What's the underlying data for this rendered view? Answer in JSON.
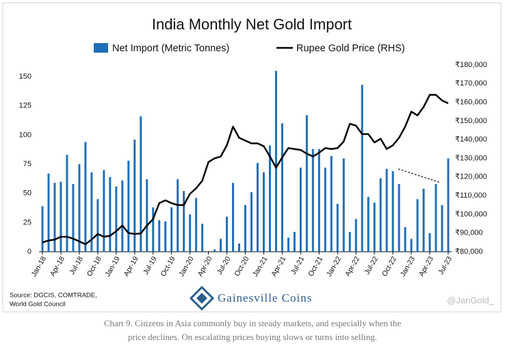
{
  "chart_data": {
    "type": "bar_line",
    "title": "India Monthly Net Gold Import",
    "categories": [
      "Jan-18",
      null,
      null,
      "Apr-18",
      null,
      null,
      "Jul-18",
      null,
      null,
      "Oct-18",
      null,
      null,
      "Jan-19",
      null,
      null,
      "Apr-19",
      null,
      null,
      "Jul-19",
      null,
      null,
      "Oct-19",
      null,
      null,
      "Jan-20",
      null,
      null,
      "Apr-20",
      null,
      null,
      "Jul-20",
      null,
      null,
      "Oct-20",
      null,
      null,
      "Jan-21",
      null,
      null,
      "Apr-21",
      null,
      null,
      "Jul-21",
      null,
      null,
      "Oct-21",
      null,
      null,
      "Jan-22",
      null,
      null,
      "Apr-22",
      null,
      null,
      "Jul-22",
      null,
      null,
      "Oct-22",
      null,
      null,
      "Jan-23",
      null,
      null,
      "Apr-23",
      null,
      null,
      "Jul-23"
    ],
    "series": [
      {
        "name": "Net Import (Metric Tonnes)",
        "color": "#1f6fb8",
        "type": "bar",
        "values": [
          39,
          67,
          59,
          60,
          83,
          58,
          75,
          94,
          68,
          45,
          70,
          64,
          56,
          61,
          78,
          96,
          116,
          62,
          38,
          27,
          26,
          38,
          62,
          52,
          32,
          46,
          24,
          0,
          2,
          11,
          30,
          59,
          7,
          40,
          51,
          76,
          68,
          91,
          155,
          110,
          12,
          17,
          72,
          117,
          88,
          88,
          72,
          82,
          41,
          80,
          17,
          28,
          143,
          47,
          42,
          63,
          71,
          69,
          58,
          21,
          11,
          45,
          54,
          16,
          58,
          40,
          80
        ]
      },
      {
        "name": "Rupee Gold Price (RHS)",
        "color": "#000000",
        "type": "line",
        "axis": "y2",
        "values": [
          85000,
          86000,
          86500,
          88000,
          88000,
          87000,
          85500,
          84000,
          86500,
          89500,
          88000,
          88500,
          91000,
          94000,
          90000,
          89500,
          89800,
          94000,
          97500,
          106000,
          107500,
          106000,
          105000,
          105000,
          111000,
          114000,
          118000,
          128000,
          130000,
          131000,
          137000,
          147000,
          141000,
          139500,
          138000,
          138000,
          136500,
          131000,
          125000,
          130500,
          135500,
          135000,
          134500,
          132500,
          131000,
          133000,
          135500,
          135000,
          135500,
          139000,
          148500,
          147500,
          143000,
          143000,
          138500,
          140500,
          135000,
          137000,
          141000,
          147000,
          155000,
          153000,
          157500,
          164000,
          164000,
          161000,
          159500
        ]
      }
    ],
    "ylim": [
      0,
      160
    ],
    "yticks": [
      0,
      25,
      50,
      75,
      100,
      125,
      150
    ],
    "y2lim": [
      80000,
      180000
    ],
    "y2ticks": [
      {
        "value": 80000,
        "label": "₹80,000"
      },
      {
        "value": 90000,
        "label": "₹90,000"
      },
      {
        "value": 100000,
        "label": "₹100,000"
      },
      {
        "value": 110000,
        "label": "₹110,000"
      },
      {
        "value": 120000,
        "label": "₹120,000"
      },
      {
        "value": 130000,
        "label": "₹130,000"
      },
      {
        "value": 140000,
        "label": "₹140,000"
      },
      {
        "value": 150000,
        "label": "₹150,000"
      },
      {
        "value": 160000,
        "label": "₹160,000"
      },
      {
        "value": 170000,
        "label": "₹170,000"
      },
      {
        "value": 180000,
        "label": "₹180,000"
      }
    ],
    "source": [
      "Source: DGCIS, COMTRADE,",
      "World Gold Council"
    ],
    "logo": "Gainesville Coins",
    "watermark": "@JanGold_",
    "caption": [
      "Chart 9. Citizens in Asia commonly buy in steady markets, and especially when the",
      "price declines. On escalating prices buying slows or turns into selling."
    ]
  }
}
